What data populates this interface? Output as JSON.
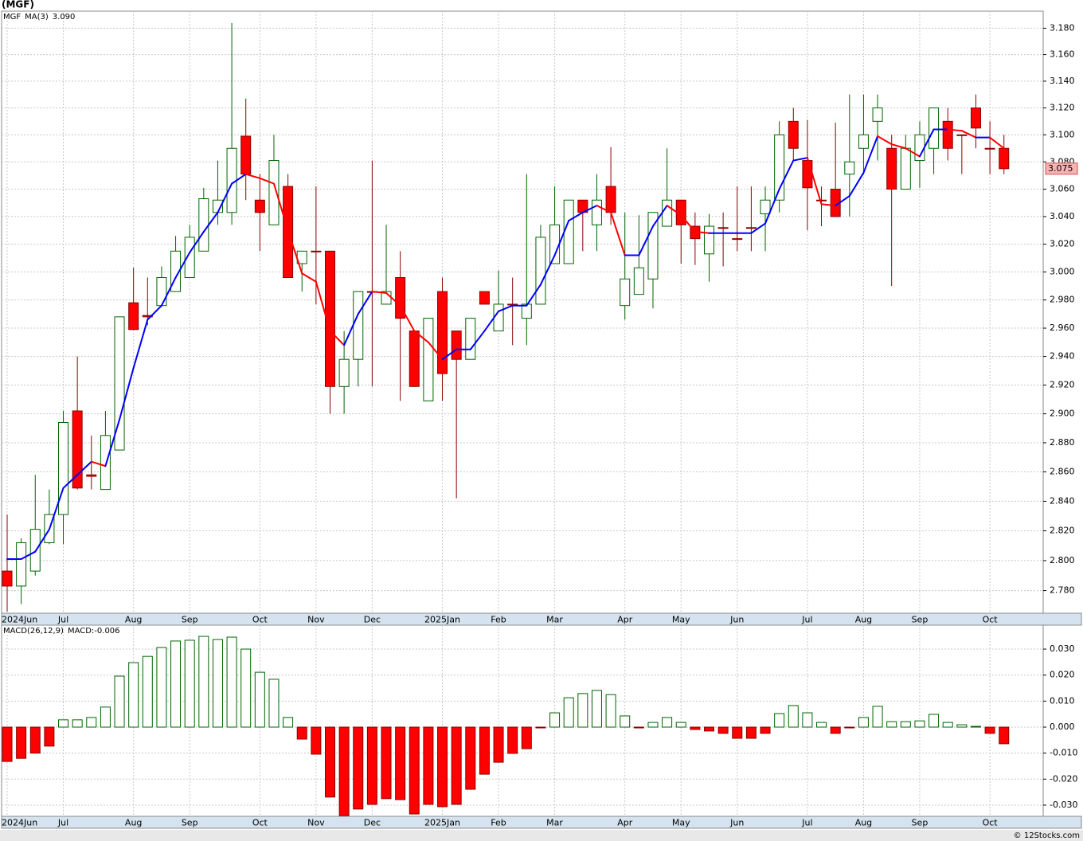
{
  "chart_data": [
    {
      "type": "candlestick",
      "title": "(MGF)",
      "log": true,
      "grid": true,
      "categories": [
        "2024Jun",
        null,
        null,
        null,
        "Jul",
        null,
        null,
        null,
        null,
        "Aug",
        null,
        null,
        null,
        "Sep",
        null,
        null,
        null,
        null,
        "Oct",
        null,
        null,
        null,
        "Nov",
        null,
        null,
        null,
        "Dec",
        null,
        null,
        null,
        null,
        "2025Jan",
        null,
        null,
        null,
        "Feb",
        null,
        null,
        null,
        "Mar",
        null,
        null,
        null,
        null,
        "Apr",
        null,
        null,
        null,
        "May",
        null,
        null,
        null,
        "Jun",
        null,
        null,
        null,
        null,
        "Jul",
        null,
        null,
        null,
        "Aug",
        null,
        null,
        null,
        "Sep",
        null,
        null,
        null,
        null,
        "Oct",
        null
      ],
      "ylim": [
        2.765,
        3.193
      ],
      "yticks": [
        {
          "value": 2.78,
          "label": "2.780"
        },
        {
          "value": 2.8,
          "label": "2.800"
        },
        {
          "value": 2.82,
          "label": "2.820"
        },
        {
          "value": 2.84,
          "label": "2.840"
        },
        {
          "value": 2.86,
          "label": "2.860"
        },
        {
          "value": 2.88,
          "label": "2.880"
        },
        {
          "value": 2.9,
          "label": "2.900"
        },
        {
          "value": 2.92,
          "label": "2.920"
        },
        {
          "value": 2.94,
          "label": "2.940"
        },
        {
          "value": 2.96,
          "label": "2.960"
        },
        {
          "value": 2.98,
          "label": "2.980"
        },
        {
          "value": 3.0,
          "label": "3.000"
        },
        {
          "value": 3.02,
          "label": "3.020"
        },
        {
          "value": 3.04,
          "label": "3.040"
        },
        {
          "value": 3.06,
          "label": "3.060"
        },
        {
          "value": 3.08,
          "label": "3.080"
        },
        {
          "value": 3.1,
          "label": "3.100"
        },
        {
          "value": 3.12,
          "label": "3.120"
        },
        {
          "value": 3.14,
          "label": "3.140"
        },
        {
          "value": 3.16,
          "label": "3.160"
        },
        {
          "value": 3.18,
          "label": "3.180"
        }
      ],
      "series": [
        {
          "name": "MGF",
          "type": "candlestick",
          "up_color": "#006400",
          "down_color": "#ff0000",
          "wick_down_color": "#8b0000",
          "open": [
            2.793,
            2.783,
            2.793,
            2.812,
            2.831,
            2.902,
            2.858,
            2.848,
            2.875,
            2.978,
            2.969,
            2.976,
            2.986,
            2.996,
            3.015,
            3.043,
            3.043,
            3.099,
            3.052,
            3.034,
            3.062,
            3.006,
            3.015,
            3.015,
            2.919,
            2.938,
            2.986,
            2.977,
            2.996,
            2.958,
            2.909,
            2.986,
            2.958,
            2.938,
            2.986,
            2.958,
            2.977,
            2.967,
            2.977,
            3.006,
            3.006,
            3.052,
            3.034,
            3.062,
            2.976,
            2.984,
            2.995,
            3.033,
            3.052,
            3.033,
            3.013,
            3.032,
            3.024,
            3.032,
            3.042,
            3.052,
            3.11,
            3.081,
            3.052,
            3.06,
            3.071,
            3.09,
            3.11,
            3.09,
            3.06,
            3.081,
            3.09,
            3.11,
            3.1,
            3.12,
            3.09,
            3.09
          ],
          "high": [
            2.831,
            2.815,
            2.858,
            2.848,
            2.902,
            2.94,
            2.885,
            2.902,
            2.968,
            3.003,
            2.996,
            3.004,
            3.026,
            3.034,
            3.061,
            3.081,
            3.184,
            3.127,
            3.071,
            3.1,
            3.071,
            3.015,
            3.062,
            3.015,
            2.958,
            2.986,
            3.081,
            3.034,
            3.015,
            2.958,
            2.967,
            2.996,
            2.958,
            2.967,
            2.986,
            3.001,
            2.996,
            3.071,
            3.034,
            3.062,
            3.052,
            3.052,
            3.071,
            3.091,
            3.043,
            3.041,
            3.043,
            3.09,
            3.052,
            3.043,
            3.042,
            3.043,
            3.062,
            3.062,
            3.062,
            3.11,
            3.12,
            3.111,
            3.062,
            3.109,
            3.13,
            3.13,
            3.13,
            3.1,
            3.1,
            3.11,
            3.12,
            3.12,
            3.1,
            3.13,
            3.11,
            3.1
          ],
          "low": [
            2.766,
            2.771,
            2.79,
            2.811,
            2.811,
            2.848,
            2.848,
            2.848,
            2.875,
            2.959,
            2.962,
            2.976,
            2.986,
            2.996,
            3.015,
            3.034,
            3.034,
            3.052,
            3.015,
            3.034,
            2.996,
            2.986,
            2.977,
            2.9,
            2.9,
            2.919,
            2.919,
            2.977,
            2.909,
            2.919,
            2.909,
            2.909,
            2.842,
            2.938,
            2.977,
            2.958,
            2.948,
            2.948,
            2.977,
            3.006,
            3.006,
            3.015,
            3.015,
            3.034,
            2.966,
            2.984,
            2.974,
            3.033,
            3.006,
            3.005,
            2.993,
            3.004,
            3.015,
            3.015,
            3.015,
            3.043,
            3.081,
            3.03,
            3.033,
            3.04,
            3.04,
            3.071,
            3.081,
            2.99,
            3.06,
            3.061,
            3.071,
            3.081,
            3.071,
            3.09,
            3.071,
            3.071
          ],
          "close": [
            2.783,
            2.812,
            2.821,
            2.831,
            2.894,
            2.849,
            2.857,
            2.885,
            2.968,
            2.959,
            2.968,
            2.996,
            3.015,
            3.025,
            3.053,
            3.052,
            3.09,
            3.071,
            3.043,
            3.081,
            2.996,
            3.015,
            3.015,
            2.919,
            2.938,
            2.986,
            2.986,
            2.986,
            2.967,
            2.919,
            2.967,
            2.928,
            2.938,
            2.967,
            2.977,
            2.977,
            2.977,
            2.977,
            3.025,
            3.034,
            3.052,
            3.043,
            3.052,
            3.043,
            2.995,
            3.003,
            3.043,
            3.052,
            3.034,
            3.024,
            3.033,
            3.032,
            3.024,
            3.032,
            3.052,
            3.1,
            3.09,
            3.061,
            3.052,
            3.04,
            3.08,
            3.1,
            3.12,
            3.06,
            3.09,
            3.1,
            3.12,
            3.09,
            3.1,
            3.105,
            3.09,
            3.075
          ]
        },
        {
          "name": "MA(3)",
          "type": "line",
          "up_color": "#0000ff",
          "down_color": "#ff0000",
          "last_label": "3.090",
          "values": [
            2.801,
            2.801,
            2.806,
            2.821,
            2.849,
            2.858,
            2.867,
            2.864,
            2.896,
            2.932,
            2.966,
            2.976,
            2.996,
            3.014,
            3.029,
            3.043,
            3.064,
            3.071,
            3.068,
            3.064,
            3.03,
            2.999,
            2.993,
            2.958,
            2.948,
            2.97,
            2.986,
            2.985,
            2.976,
            2.958,
            2.95,
            2.938,
            2.945,
            2.945,
            2.958,
            2.972,
            2.976,
            2.976,
            2.991,
            3.012,
            3.037,
            3.043,
            3.048,
            3.043,
            3.012,
            3.012,
            3.033,
            3.048,
            3.041,
            3.029,
            3.028,
            3.028,
            3.028,
            3.028,
            3.035,
            3.06,
            3.081,
            3.083,
            3.049,
            3.048,
            3.055,
            3.072,
            3.099,
            3.093,
            3.09,
            3.084,
            3.104,
            3.104,
            3.103,
            3.098,
            3.098,
            3.09
          ]
        }
      ]
    },
    {
      "type": "bar",
      "grid": true,
      "status_label": "MACD:-0.006",
      "source": "© 12Stocks.com",
      "categories": [
        "2024Jun",
        null,
        null,
        null,
        "Jul",
        null,
        null,
        null,
        null,
        "Aug",
        null,
        null,
        null,
        "Sep",
        null,
        null,
        null,
        null,
        "Oct",
        null,
        null,
        null,
        "Nov",
        null,
        null,
        null,
        "Dec",
        null,
        null,
        null,
        null,
        "2025Jan",
        null,
        null,
        null,
        "Feb",
        null,
        null,
        null,
        "Mar",
        null,
        null,
        null,
        null,
        "Apr",
        null,
        null,
        null,
        "May",
        null,
        null,
        null,
        "Jun",
        null,
        null,
        null,
        null,
        "Jul",
        null,
        null,
        null,
        "Aug",
        null,
        null,
        null,
        "Sep",
        null,
        null,
        null,
        null,
        "Oct",
        null
      ],
      "ylim": [
        -0.0343,
        0.0392
      ],
      "yticks": [
        {
          "value": -0.03,
          "label": "-0.030"
        },
        {
          "value": -0.02,
          "label": "-0.020"
        },
        {
          "value": -0.01,
          "label": "-0.010"
        },
        {
          "value": 0,
          "label": "0.000"
        },
        {
          "value": 0.01,
          "label": "0.010"
        },
        {
          "value": 0.02,
          "label": "0.020"
        },
        {
          "value": 0.03,
          "label": "0.030"
        }
      ],
      "series": [
        {
          "name": "MACD(26,12,9)",
          "type": "bar",
          "up_color": "#006400",
          "down_color": "#ff0000",
          "values": [
            -0.0132,
            -0.012,
            -0.01,
            -0.0073,
            0.0028,
            0.0028,
            0.0037,
            0.0077,
            0.0196,
            0.0248,
            0.0272,
            0.0306,
            0.0331,
            0.0334,
            0.0349,
            0.0337,
            0.0346,
            0.03,
            0.0211,
            0.0184,
            0.0037,
            -0.0046,
            -0.0104,
            -0.0269,
            -0.034,
            -0.0315,
            -0.0297,
            -0.0275,
            -0.0279,
            -0.0334,
            -0.0297,
            -0.0306,
            -0.0297,
            -0.0239,
            -0.0181,
            -0.0135,
            -0.0101,
            -0.0083,
            -0.0003,
            0.0055,
            0.0113,
            0.0129,
            0.0141,
            0.0125,
            0.0043,
            -0.0003,
            0.0018,
            0.0037,
            0.0018,
            -0.0009,
            -0.0015,
            -0.0024,
            -0.0043,
            -0.0043,
            -0.0024,
            0.0052,
            0.0083,
            0.0055,
            0.0018,
            -0.0024,
            0.0,
            0.0037,
            0.008,
            0.0021,
            0.0021,
            0.0024,
            0.0049,
            0.0018,
            0.0009,
            0.0003,
            -0.0024,
            -0.0064
          ]
        }
      ]
    }
  ]
}
